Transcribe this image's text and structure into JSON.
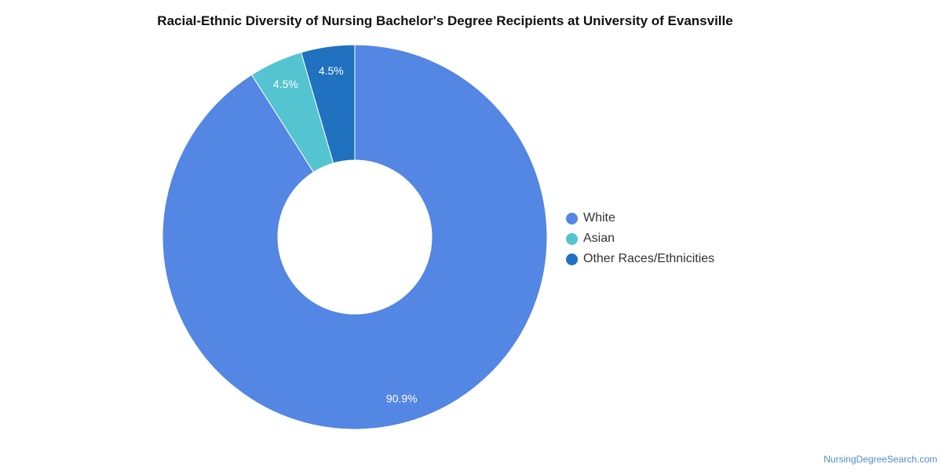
{
  "chart_data": {
    "type": "pie",
    "title": "Racial-Ethnic Diversity of Nursing Bachelor's Degree Recipients at University of Evansville",
    "donut": true,
    "categories": [
      "White",
      "Asian",
      "Other Races/Ethnicities"
    ],
    "values": [
      90.9,
      4.5,
      4.5
    ],
    "labels": [
      "90.9%",
      "4.5%",
      "4.5%"
    ],
    "colors": [
      "#5486e3",
      "#54c4d0",
      "#2071bf"
    ],
    "legend_position": "right"
  },
  "watermark": "NursingDegreeSearch.com"
}
